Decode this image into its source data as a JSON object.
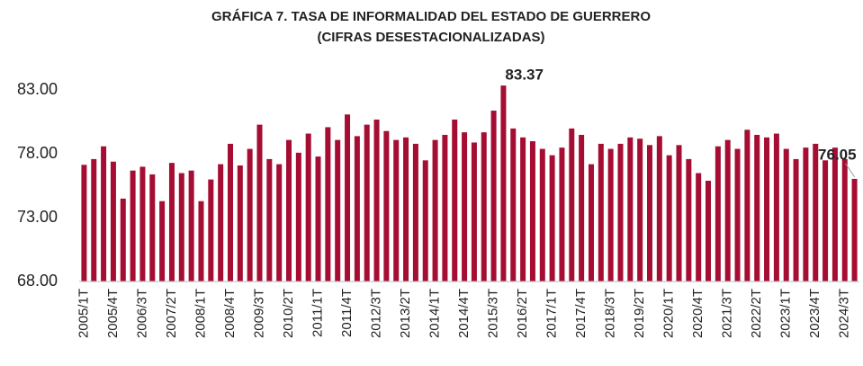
{
  "chart_data": {
    "type": "bar",
    "title": [
      "GRÁFICA 7. TASA DE INFORMALIDAD DEL ESTADO DE GUERRERO",
      "(CIFRAS DESESTACIONALIZADAS)"
    ],
    "categories": [
      "2005/1T",
      null,
      null,
      "2005/4T",
      null,
      null,
      "2006/3T",
      null,
      null,
      "2007/2T",
      null,
      null,
      "2008/1T",
      null,
      null,
      "2008/4T",
      null,
      null,
      "2009/3T",
      null,
      null,
      "2010/2T",
      null,
      null,
      "2011/1T",
      null,
      null,
      "2011/4T",
      null,
      null,
      "2012/3T",
      null,
      null,
      "2013/2T",
      null,
      null,
      "2014/1T",
      null,
      null,
      "2014/4T",
      null,
      null,
      "2015/3T",
      null,
      null,
      "2016/2T",
      null,
      null,
      "2017/1T",
      null,
      null,
      "2017/4T",
      null,
      null,
      "2018/3T",
      null,
      null,
      "2019/2T",
      null,
      null,
      "2020/1T",
      null,
      null,
      "2020/4T",
      null,
      null,
      "2021/3T",
      null,
      null,
      "2022/2T",
      null,
      null,
      "2023/1T",
      null,
      null,
      "2023/4T",
      null,
      null,
      "2024/3T",
      null
    ],
    "values": [
      77.15,
      77.6,
      78.6,
      77.4,
      74.5,
      76.7,
      77.0,
      76.4,
      74.3,
      77.3,
      76.5,
      76.7,
      74.3,
      76.0,
      77.2,
      78.8,
      77.1,
      78.4,
      80.3,
      77.6,
      77.2,
      79.1,
      78.1,
      79.6,
      77.8,
      80.1,
      79.1,
      81.1,
      79.4,
      80.3,
      80.7,
      79.8,
      79.1,
      79.3,
      78.8,
      77.5,
      79.1,
      79.5,
      80.7,
      79.7,
      78.9,
      79.7,
      81.4,
      83.37,
      80.0,
      79.3,
      79.0,
      78.4,
      77.9,
      78.5,
      80.0,
      79.5,
      77.2,
      78.8,
      78.4,
      78.8,
      79.3,
      79.2,
      78.7,
      79.4,
      77.9,
      78.7,
      77.6,
      76.5,
      75.9,
      78.6,
      79.1,
      78.4,
      79.9,
      79.5,
      79.3,
      79.6,
      78.4,
      77.6,
      78.5,
      78.8,
      77.5,
      78.5,
      77.6,
      76.05
    ],
    "value_labels": [
      null,
      null,
      null,
      null,
      null,
      null,
      null,
      null,
      null,
      null,
      null,
      null,
      null,
      null,
      null,
      null,
      null,
      null,
      null,
      null,
      null,
      null,
      null,
      null,
      null,
      null,
      null,
      null,
      null,
      null,
      null,
      null,
      null,
      null,
      null,
      null,
      null,
      null,
      null,
      null,
      null,
      null,
      null,
      "83.37",
      null,
      null,
      null,
      null,
      null,
      null,
      null,
      null,
      null,
      null,
      null,
      null,
      null,
      null,
      null,
      null,
      null,
      null,
      null,
      null,
      null,
      null,
      null,
      null,
      null,
      null,
      null,
      null,
      null,
      null,
      null,
      null,
      null,
      null,
      null,
      "76.05"
    ],
    "color": "#a50d32",
    "ylim": [
      68,
      85
    ],
    "yticks": [
      {
        "value": 68,
        "label": "68.00"
      },
      {
        "value": 73,
        "label": "73.00"
      },
      {
        "value": 78,
        "label": "78.00"
      },
      {
        "value": 83,
        "label": "83.00"
      }
    ],
    "grid": false
  }
}
